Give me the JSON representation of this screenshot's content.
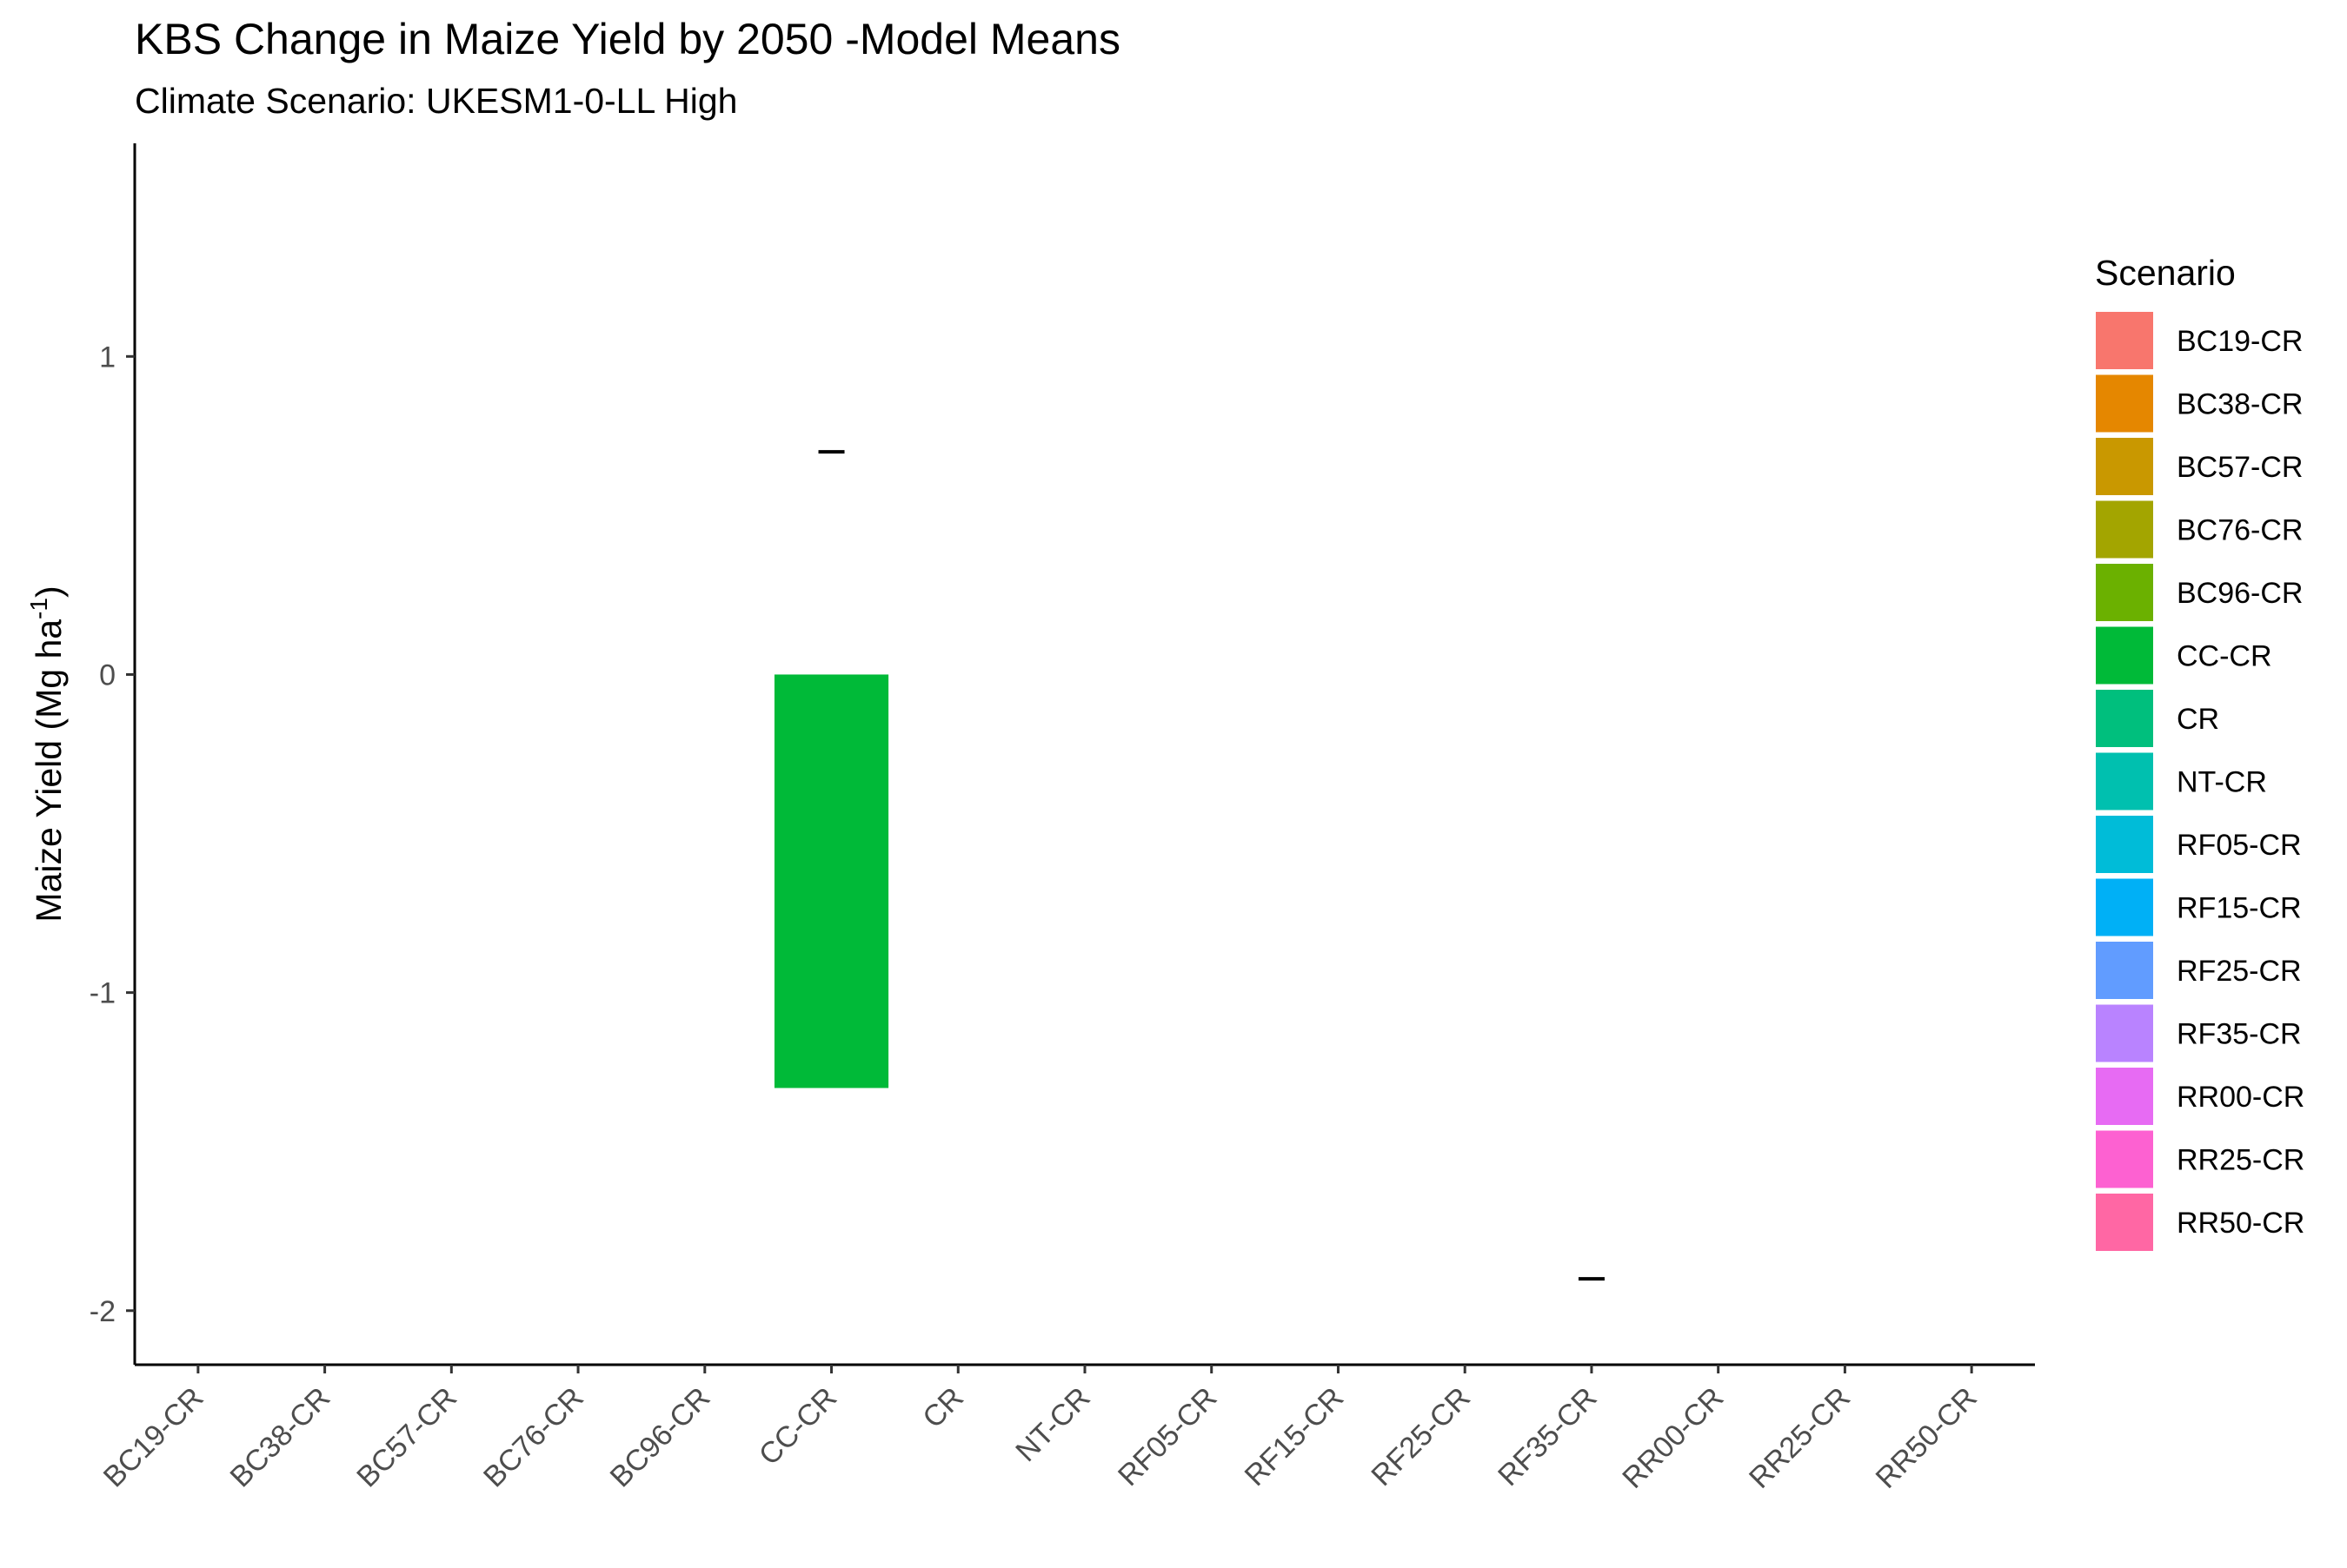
{
  "chart_data": {
    "type": "bar",
    "title": "KBS Change in Maize Yield by  2050 -Model Means",
    "subtitle": "Climate Scenario: UKESM1-0-LL High",
    "xlabel": "",
    "ylabel": "Maize Yield (Mg ha",
    "ylabel_superscript": "-1",
    "ylabel_suffix": ")",
    "ylim": [
      -2.17,
      1.67
    ],
    "yticks": [
      -2,
      -1,
      0,
      1
    ],
    "grid": false,
    "legend": {
      "title": "Scenario",
      "placement": "right"
    },
    "categories": [
      "BC19-CR",
      "BC38-CR",
      "BC57-CR",
      "BC76-CR",
      "BC96-CR",
      "CC-CR",
      "CR",
      "NT-CR",
      "RF05-CR",
      "RF15-CR",
      "RF25-CR",
      "RF35-CR",
      "RR00-CR",
      "RR25-CR",
      "RR50-CR"
    ],
    "colors": [
      "#F8766D",
      "#E58700",
      "#C99800",
      "#A3A500",
      "#6BB100",
      "#00BA38",
      "#00BF7D",
      "#00C0AF",
      "#00BCD8",
      "#00B0F6",
      "#619CFF",
      "#B983FF",
      "#E76BF3",
      "#FD61D1",
      "#FF67A4"
    ],
    "values": [
      null,
      null,
      null,
      null,
      null,
      -1.3,
      null,
      null,
      null,
      null,
      null,
      0.0,
      null,
      null,
      null
    ],
    "error_caps": [
      null,
      null,
      null,
      null,
      null,
      0.7,
      null,
      null,
      null,
      null,
      null,
      -1.9,
      null,
      null,
      null
    ]
  }
}
